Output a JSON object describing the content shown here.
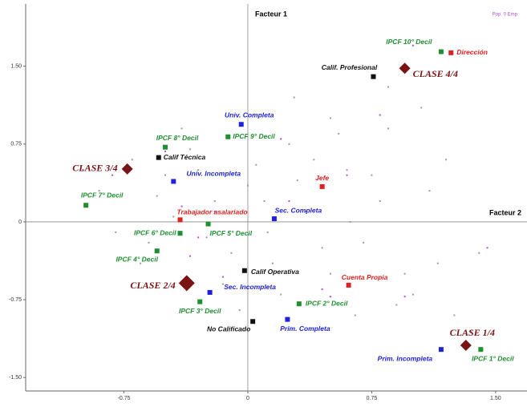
{
  "chart_data": {
    "type": "scatter",
    "y_axis_label": "Facteur 1",
    "x_axis_label": "Facteur 2",
    "corner_label": "Pop. 0 Emp",
    "xlim": [
      -1.345,
      1.69
    ],
    "ylim": [
      -1.63,
      2.1
    ],
    "xticks": [
      -0.75,
      0,
      0.75,
      {
        "value": 1.5,
        "label": "1.50"
      }
    ],
    "yticks": [
      {
        "value": 1.5,
        "label": "1.50"
      },
      0.75,
      0,
      -0.75,
      {
        "value": -1.5,
        "label": "-1.50"
      }
    ],
    "background": {
      "color": "#9a9aa8",
      "x": [
        -0.9,
        -0.7,
        -0.6,
        -0.5,
        -0.35,
        -0.2,
        -0.1,
        0.05,
        0.15,
        0.25,
        0.35,
        0.5,
        0.6,
        0.7,
        0.85,
        1.0,
        1.1,
        1.25,
        1.4,
        -0.8,
        -0.55,
        -0.3,
        -0.15,
        0.1,
        0.3,
        0.45,
        0.55,
        0.8,
        0.95,
        1.2,
        -0.65,
        -0.45,
        -0.25,
        0.0,
        0.2,
        0.4,
        0.65,
        0.9,
        1.05,
        1.35,
        -1.0,
        -0.4,
        0.12,
        0.5,
        0.75,
        1.15,
        0.28,
        -0.05,
        0.62,
        0.85
      ],
      "values": [
        0.3,
        0.6,
        -0.2,
        0.45,
        0.7,
        0.2,
        -0.3,
        0.55,
        -0.4,
        0.75,
        0.1,
        -0.5,
        0.5,
        -0.2,
        0.9,
        -0.7,
        0.3,
        -0.9,
        -0.3,
        -0.1,
        0.25,
        0.5,
        -0.6,
        0.2,
        0.4,
        -0.25,
        0.85,
        0.2,
        -0.5,
        0.6,
        -0.4,
        0.05,
        -0.15,
        0.35,
        -0.7,
        0.6,
        -0.9,
        -0.8,
        1.1,
        -1.05,
        0.5,
        0.9,
        -0.1,
        1.0,
        0.45,
        -0.4,
        1.2,
        -0.85,
        0.0,
        1.3
      ]
    },
    "accent": {
      "color": "#b04fd6",
      "x": [
        -0.82,
        -0.4,
        -0.2,
        0.2,
        0.6,
        0.8,
        1.0,
        -0.5,
        0.25,
        0.45,
        0.95,
        -0.15,
        -0.35,
        0.5,
        -0.3,
        1.45
      ],
      "values": [
        0.45,
        0.15,
        0.1,
        0.8,
        0.45,
        1.03,
        1.7,
        0.68,
        0.2,
        -0.65,
        -0.72,
        -0.53,
        -0.33,
        -0.72,
        -0.15,
        -0.25
      ]
    },
    "series": [
      {
        "color": "#1f8f2f",
        "marker": "square",
        "labels": [
          "IPCF 10° Decil",
          "IPCF 9° Decil",
          "IPCF 8° Decil",
          "IPCF 7° Decil",
          "IPCF 6° Decil",
          "IPCF 5° Decil",
          "IPCF 4° Decil",
          "IPCF 3° Decil",
          "IPCF 2° Decil",
          "IPCF 1° Decil"
        ],
        "x": [
          1.17,
          -0.12,
          -0.5,
          -0.98,
          -0.41,
          -0.24,
          -0.55,
          -0.29,
          0.31,
          1.41
        ],
        "values": [
          1.64,
          0.82,
          0.72,
          0.16,
          -0.11,
          -0.02,
          -0.28,
          -0.77,
          -0.79,
          -1.23
        ]
      },
      {
        "color": "#e0201e",
        "marker": "square",
        "labels": [
          "Dirección",
          "Jefe",
          "Trabajador asalariado",
          "Cuenta Propia"
        ],
        "x": [
          1.23,
          0.45,
          -0.41,
          0.61
        ],
        "values": [
          1.63,
          0.34,
          0.02,
          -0.61
        ]
      },
      {
        "color": "#1f22d8",
        "marker": "square",
        "labels": [
          "Univ. Completa",
          "Univ. Incompleta",
          "Sec. Completa",
          "Sec. Incompleta",
          "Prim. Completa",
          "Prim. Incompleta"
        ],
        "x": [
          -0.04,
          -0.45,
          0.16,
          -0.23,
          0.24,
          1.17
        ],
        "values": [
          0.94,
          0.39,
          0.03,
          -0.68,
          -0.94,
          -1.23
        ]
      },
      {
        "color": "#111111",
        "marker": "square",
        "labels": [
          "Calif. Profesional",
          "Calif Técnica",
          "Calif Operativa",
          "No Calificado"
        ],
        "x": [
          0.76,
          -0.54,
          -0.02,
          0.03
        ],
        "values": [
          1.4,
          0.62,
          -0.47,
          -0.96
        ]
      },
      {
        "color": "#7a1414",
        "marker": "diamond",
        "labels": [
          "CLASE 4/4",
          "CLASE 3/4",
          "CLASE 2/4",
          "CLASE 1/4"
        ],
        "x": [
          0.95,
          -0.73,
          -0.37,
          1.32
        ],
        "values": [
          1.48,
          0.51,
          -0.59,
          -1.19
        ]
      }
    ]
  }
}
